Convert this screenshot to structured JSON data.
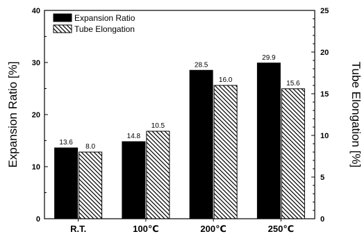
{
  "chart_data": {
    "type": "bar",
    "categories": [
      "R.T.",
      "100℃",
      "200℃",
      "250℃"
    ],
    "series": [
      {
        "name": "Expansion Ratio",
        "axis": "left",
        "values": [
          13.6,
          14.8,
          28.5,
          29.9
        ],
        "labels": [
          "13.6",
          "14.8",
          "28.5",
          "29.9"
        ],
        "color": "#000000",
        "pattern": "solid"
      },
      {
        "name": "Tube Elongation",
        "axis": "right",
        "values": [
          8.0,
          10.5,
          16.0,
          15.6
        ],
        "labels": [
          "8.0",
          "10.5",
          "16.0",
          "15.6"
        ],
        "color": "#000000",
        "pattern": "diagonal-hatch"
      }
    ],
    "ylabel": "Expansion Ratio [%]",
    "y2label": "Tube Elongation [%]",
    "ylim": [
      0,
      40
    ],
    "y2lim": [
      0,
      25
    ],
    "yticks": [
      0,
      10,
      20,
      30,
      40
    ],
    "y2ticks": [
      0,
      5,
      10,
      15,
      20,
      25
    ],
    "grid": false,
    "legend_position": "top-left"
  }
}
